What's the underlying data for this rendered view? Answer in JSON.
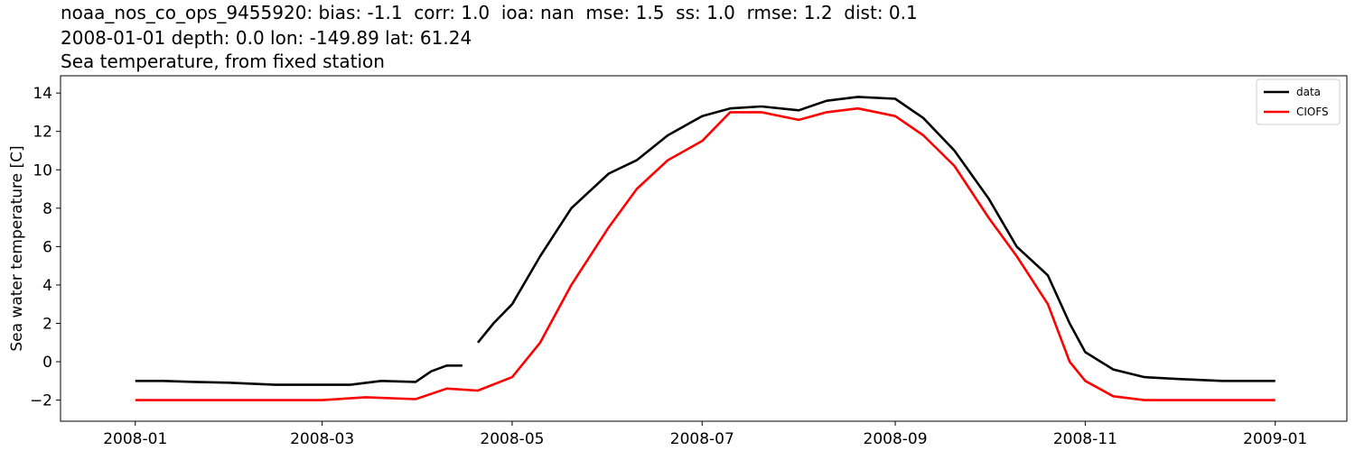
{
  "chart_data": {
    "type": "line",
    "title_lines": [
      "noaa_nos_co_ops_9455920: bias: -1.1  corr: 1.0  ioa: nan  mse: 1.5  ss: 1.0  rmse: 1.2  dist: 0.1",
      "2008-01-01 depth: 0.0 lon: -149.89 lat: 61.24",
      "Sea temperature, from fixed station"
    ],
    "xlabel": "",
    "ylabel": "Sea water temperature [C]",
    "xlim": [
      "2007-12-08",
      "2009-01-24"
    ],
    "ylim": [
      -3.1,
      14.9
    ],
    "yticks": [
      -2,
      0,
      2,
      4,
      6,
      8,
      10,
      12,
      14
    ],
    "xticks": [
      "2008-01-01",
      "2008-03-01",
      "2008-05-01",
      "2008-07-01",
      "2008-09-01",
      "2008-11-01",
      "2009-01-01"
    ],
    "xtick_labels": [
      "2008-01",
      "2008-03",
      "2008-05",
      "2008-07",
      "2008-09",
      "2008-11",
      "2009-01"
    ],
    "grid": false,
    "legend_position": "top-right",
    "series": [
      {
        "name": "data",
        "color": "#000000",
        "segments": [
          {
            "x": [
              "2008-01-01",
              "2008-01-10",
              "2008-01-20",
              "2008-02-01",
              "2008-02-15",
              "2008-03-01",
              "2008-03-10",
              "2008-03-20",
              "2008-03-31",
              "2008-04-05",
              "2008-04-10",
              "2008-04-15"
            ],
            "y": [
              -1.0,
              -1.0,
              -1.05,
              -1.1,
              -1.2,
              -1.2,
              -1.2,
              -1.0,
              -1.05,
              -0.5,
              -0.2,
              -0.2
            ]
          },
          {
            "x": [
              "2008-04-20",
              "2008-04-25",
              "2008-05-01",
              "2008-05-10",
              "2008-05-20",
              "2008-06-01",
              "2008-06-10",
              "2008-06-20",
              "2008-07-01",
              "2008-07-10",
              "2008-07-20",
              "2008-08-01",
              "2008-08-10",
              "2008-08-20",
              "2008-09-01",
              "2008-09-10",
              "2008-09-20",
              "2008-10-01",
              "2008-10-10",
              "2008-10-20",
              "2008-10-27",
              "2008-11-01",
              "2008-11-10",
              "2008-11-20",
              "2008-12-01",
              "2008-12-15",
              "2009-01-01"
            ],
            "y": [
              1.0,
              2.0,
              3.0,
              5.5,
              8.0,
              9.8,
              10.5,
              11.8,
              12.8,
              13.2,
              13.3,
              13.1,
              13.6,
              13.8,
              13.7,
              12.7,
              11.0,
              8.5,
              6.0,
              4.5,
              2.0,
              0.5,
              -0.4,
              -0.8,
              -0.9,
              -1.0,
              -1.0
            ]
          }
        ]
      },
      {
        "name": "CIOFS",
        "color": "#ff0000",
        "segments": [
          {
            "x": [
              "2008-01-01",
              "2008-01-15",
              "2008-02-01",
              "2008-02-15",
              "2008-03-01",
              "2008-03-15",
              "2008-03-31",
              "2008-04-10",
              "2008-04-20",
              "2008-05-01",
              "2008-05-10",
              "2008-05-20",
              "2008-06-01",
              "2008-06-10",
              "2008-06-20",
              "2008-07-01",
              "2008-07-10",
              "2008-07-20",
              "2008-08-01",
              "2008-08-10",
              "2008-08-20",
              "2008-09-01",
              "2008-09-10",
              "2008-09-20",
              "2008-10-01",
              "2008-10-10",
              "2008-10-20",
              "2008-10-27",
              "2008-11-01",
              "2008-11-10",
              "2008-11-20",
              "2008-12-01",
              "2008-12-15",
              "2009-01-01"
            ],
            "y": [
              -2.0,
              -2.0,
              -2.0,
              -2.0,
              -2.0,
              -1.85,
              -1.95,
              -1.4,
              -1.5,
              -0.8,
              1.0,
              4.0,
              7.0,
              9.0,
              10.5,
              11.5,
              13.0,
              13.0,
              12.6,
              13.0,
              13.2,
              12.8,
              11.8,
              10.2,
              7.5,
              5.5,
              3.0,
              0.0,
              -1.0,
              -1.8,
              -2.0,
              -2.0,
              -2.0,
              -2.0
            ]
          }
        ]
      }
    ]
  }
}
